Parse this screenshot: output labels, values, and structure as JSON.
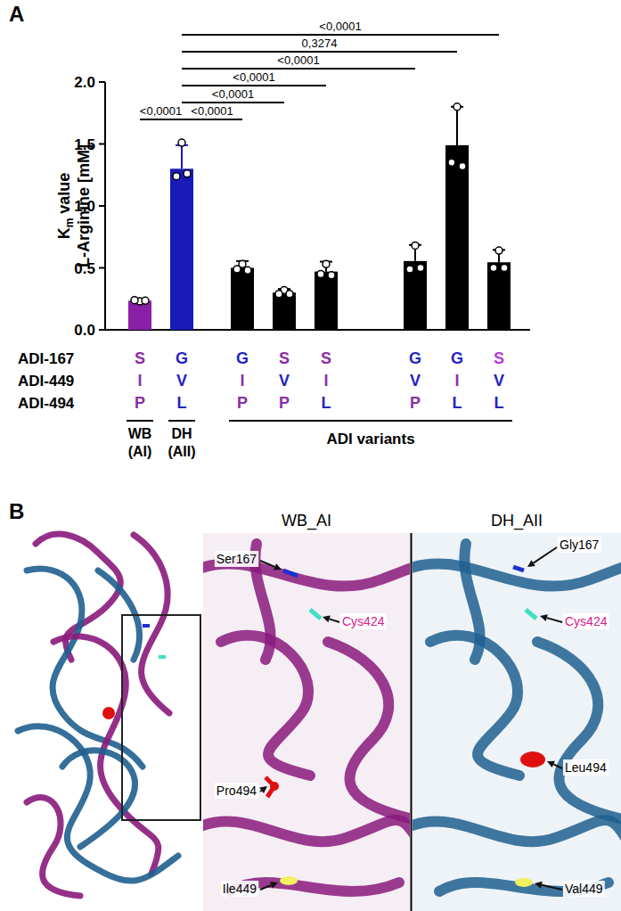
{
  "panel_labels": [
    "A",
    "B"
  ],
  "chart_data": {
    "type": "bar",
    "ylabel": [
      "K",
      "m",
      " value",
      "L-Arginine [mM]"
    ],
    "categories": [
      null,
      null,
      null,
      null,
      null,
      null,
      null,
      null
    ],
    "values": [
      0.235,
      1.3,
      0.5,
      0.3,
      0.47,
      0.555,
      1.49,
      0.545
    ],
    "errors": [
      0.01,
      0.19,
      0.055,
      0.03,
      0.08,
      0.13,
      0.31,
      0.1
    ],
    "points": [
      [
        0.23,
        0.235,
        0.24
      ],
      [
        1.51,
        1.26,
        1.24
      ],
      [
        0.53,
        0.48,
        0.49
      ],
      [
        0.32,
        0.29,
        0.29
      ],
      [
        0.53,
        0.44,
        0.45
      ],
      [
        0.68,
        0.5,
        0.49
      ],
      [
        1.8,
        1.32,
        1.35
      ],
      [
        0.64,
        0.5,
        0.5
      ]
    ],
    "colors": [
      "#8a1fa8",
      "#1a1ab8",
      "#000000",
      "#000000",
      "#000000",
      "#000000",
      "#000000",
      "#000000"
    ],
    "ylim": [
      0,
      2.0
    ],
    "yticks": [
      {
        "value": 0,
        "label": "0.0"
      },
      {
        "value": 0.5,
        "label": "0.5"
      },
      {
        "value": 1.0,
        "label": "1.0"
      },
      {
        "value": 1.5,
        "label": "1.5"
      },
      {
        "value": 2.0,
        "label": "2.0"
      }
    ],
    "comparisons": [
      {
        "bars": [
          0,
          1
        ],
        "label": "<0,0001"
      },
      {
        "bars": [
          1,
          2
        ],
        "label": "<0,0001"
      },
      {
        "bars": [
          1,
          3
        ],
        "label": "<0,0001"
      },
      {
        "bars": [
          1,
          4
        ],
        "label": "<0,0001"
      },
      {
        "bars": [
          1,
          5
        ],
        "label": "<0,0001"
      },
      {
        "bars": [
          1,
          6
        ],
        "label": "0,3274"
      },
      {
        "bars": [
          1,
          7
        ],
        "label": "<0,0001"
      }
    ],
    "residue_table": {
      "rows": [
        {
          "label": "ADI-167",
          "letters": [
            "S",
            "G",
            "G",
            "S",
            "S",
            "G",
            "G",
            "S"
          ],
          "colors": [
            "#8c2ca6",
            "#2424c0",
            "#2424c0",
            "#8c2ca6",
            "#8c2ca6",
            "#2424c0",
            "#2424c0",
            "#b93ddb"
          ]
        },
        {
          "label": "ADI-449",
          "letters": [
            "I",
            "V",
            "I",
            "V",
            "I",
            "V",
            "I",
            "V"
          ],
          "colors": [
            "#8c2ca6",
            "#2424c0",
            "#8c2ca6",
            "#2424c0",
            "#8c2ca6",
            "#2424c0",
            "#8c2ca6",
            "#2424c0"
          ]
        },
        {
          "label": "ADI-494",
          "letters": [
            "P",
            "L",
            "P",
            "P",
            "L",
            "P",
            "L",
            "L"
          ],
          "colors": [
            "#8c2ca6",
            "#2424c0",
            "#8c2ca6",
            "#8c2ca6",
            "#2424c0",
            "#8c2ca6",
            "#2424c0",
            "#2424c0"
          ]
        }
      ]
    },
    "groups": [
      {
        "label": [
          "WB",
          "(AI)"
        ],
        "bars": [
          0,
          0
        ]
      },
      {
        "label": [
          "DH",
          "(AII)"
        ],
        "bars": [
          1,
          1
        ]
      },
      {
        "label": [
          "ADI variants"
        ],
        "bars": [
          2,
          7
        ]
      }
    ]
  },
  "panel_b": {
    "titles": [
      "WB_AI",
      "DH_AII"
    ],
    "labels": [
      {
        "text": "Ser167",
        "panel": 0,
        "color": "#000000"
      },
      {
        "text": "Cys424",
        "panel": 0,
        "color": "#d4208e"
      },
      {
        "text": "Pro494",
        "panel": 0,
        "color": "#000000"
      },
      {
        "text": "Ile449",
        "panel": 0,
        "color": "#000000"
      },
      {
        "text": "Gly167",
        "panel": 1,
        "color": "#000000"
      },
      {
        "text": "Cys424",
        "panel": 1,
        "color": "#d4208e"
      },
      {
        "text": "Leu494",
        "panel": 1,
        "color": "#000000"
      },
      {
        "text": "Val449",
        "panel": 1,
        "color": "#000000"
      }
    ]
  }
}
